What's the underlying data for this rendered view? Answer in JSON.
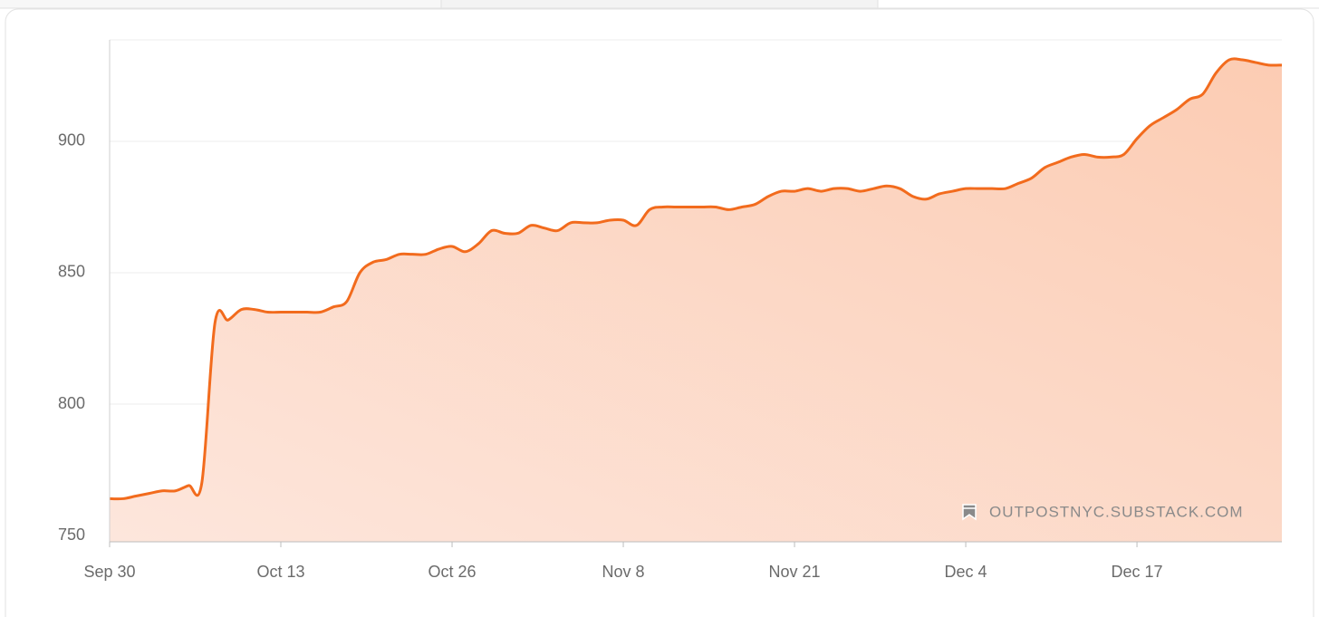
{
  "chart_data": {
    "type": "area",
    "categories": [
      "Sep 30",
      null,
      null,
      null,
      null,
      null,
      null,
      null,
      null,
      null,
      null,
      null,
      null,
      "Oct 13",
      null,
      null,
      null,
      null,
      null,
      null,
      null,
      null,
      null,
      null,
      null,
      null,
      "Oct 26",
      null,
      null,
      null,
      null,
      null,
      null,
      null,
      null,
      null,
      null,
      null,
      null,
      "Nov 8",
      null,
      null,
      null,
      null,
      null,
      null,
      null,
      null,
      null,
      null,
      null,
      null,
      "Nov 21",
      null,
      null,
      null,
      null,
      null,
      null,
      null,
      null,
      null,
      null,
      null,
      null,
      "Dec 4",
      null,
      null,
      null,
      null,
      null,
      null,
      null,
      null,
      null,
      null,
      null,
      null,
      "Dec 17",
      null,
      null,
      null,
      null,
      null,
      null,
      null,
      null,
      null,
      null,
      null
    ],
    "values": [
      764,
      764,
      765,
      766,
      767,
      767,
      769,
      770,
      831,
      832,
      836,
      836,
      835,
      835,
      835,
      835,
      835,
      837,
      839,
      850,
      854,
      855,
      857,
      857,
      857,
      859,
      860,
      858,
      861,
      866,
      865,
      865,
      868,
      867,
      866,
      869,
      869,
      869,
      870,
      870,
      868,
      874,
      875,
      875,
      875,
      875,
      875,
      874,
      875,
      876,
      879,
      881,
      881,
      882,
      881,
      882,
      882,
      881,
      882,
      883,
      882,
      879,
      878,
      880,
      881,
      882,
      882,
      882,
      882,
      884,
      886,
      890,
      892,
      894,
      895,
      894,
      894,
      895,
      901,
      906,
      909,
      912,
      916,
      918,
      926,
      931,
      931,
      930,
      929,
      929
    ],
    "color": "#f26b1d",
    "ylim": [
      747.6,
      938.6
    ],
    "yticks": [
      750,
      800,
      850,
      900
    ],
    "grid": true,
    "watermark": "OUTPOSTNYC.SUBSTACK.COM"
  }
}
